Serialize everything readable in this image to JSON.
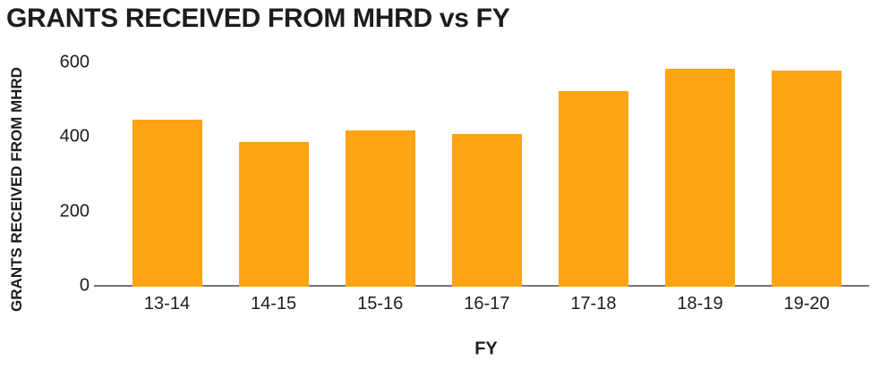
{
  "chart_data": {
    "type": "bar",
    "title": "GRANTS RECEIVED FROM MHRD vs FY",
    "xlabel": "FY",
    "ylabel": "GRANTS RECEIVED FROM MHRD",
    "categories": [
      "13-14",
      "14-15",
      "15-16",
      "16-17",
      "17-18",
      "18-19",
      "19-20"
    ],
    "values": [
      450,
      390,
      420,
      410,
      525,
      585,
      580
    ],
    "yticks": [
      0,
      200,
      400,
      600
    ],
    "ylim": [
      0,
      620
    ],
    "grid": false,
    "legend": false,
    "bar_color": "#FFA413",
    "axis_line_color": "#757575",
    "text_color": "#1D1D1D",
    "background_color": "#FFFFFF"
  }
}
